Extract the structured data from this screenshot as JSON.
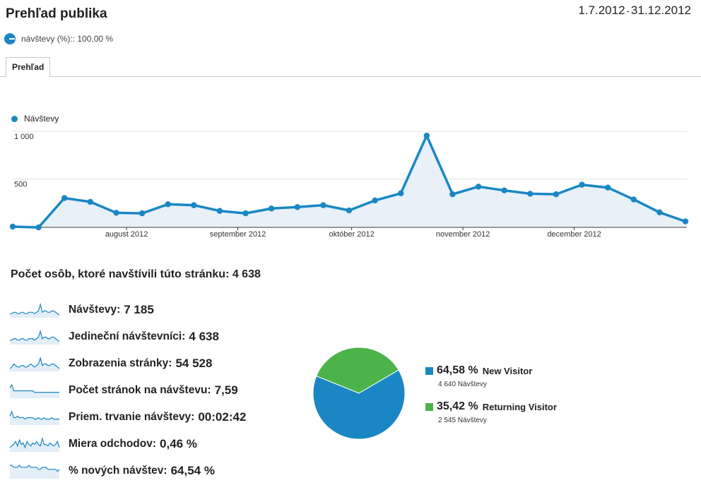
{
  "header": {
    "title": "Prehľad publika",
    "date_start": "1.7.2012",
    "date_sep": "-",
    "date_end": "31.12.2012"
  },
  "segment": {
    "label": "návštevy (%):: 100,00 %"
  },
  "tabs": [
    {
      "label": "Prehľad"
    }
  ],
  "chart_data": [
    {
      "type": "line",
      "series": [
        {
          "name": "Návštevy",
          "values": [
            0,
            -8,
            300,
            260,
            145,
            140,
            235,
            225,
            165,
            140,
            190,
            205,
            225,
            170,
            275,
            350,
            955,
            340,
            420,
            380,
            345,
            340,
            440,
            410,
            285,
            150,
            55
          ]
        }
      ],
      "x_month_labels": [
        "august 2012",
        "september 2012",
        "október 2012",
        "november 2012",
        "december 2012"
      ],
      "x_month_positions": [
        4.4,
        8.7,
        13.1,
        17.4,
        21.7
      ],
      "y_ticks": [
        {
          "value": 1000,
          "label": "1 000"
        },
        {
          "value": 500,
          "label": "500"
        }
      ],
      "ylim": [
        0,
        1000
      ],
      "grid": true,
      "fill": true,
      "color": "#1a87c4"
    },
    {
      "type": "pie",
      "slices": [
        {
          "name": "New Visitor",
          "value": 64.58,
          "pct_label": "64,58 %",
          "sub": "4 640 Návštevy",
          "color": "#1a87c4"
        },
        {
          "name": "Returning Visitor",
          "value": 35.42,
          "pct_label": "35,42 %",
          "sub": "2 545 Návštevy",
          "color": "#4cb34a"
        }
      ]
    }
  ],
  "summary": {
    "title": "Počet osôb, ktoré navštívili túto stránku: 4 638",
    "metrics": [
      {
        "label": "Návštevy:",
        "value": "7 185",
        "spark": [
          2,
          2,
          3,
          3,
          2,
          2,
          3,
          3,
          2,
          2,
          3,
          3,
          3,
          2,
          3,
          4,
          9,
          3,
          4,
          4,
          3,
          3,
          4,
          4,
          3,
          2,
          1
        ]
      },
      {
        "label": "Jedineční návštevníci:",
        "value": "4 638",
        "spark": [
          2,
          2,
          3,
          3,
          2,
          2,
          3,
          3,
          2,
          2,
          3,
          3,
          3,
          2,
          3,
          4,
          8,
          3,
          4,
          4,
          3,
          3,
          4,
          4,
          3,
          2,
          1
        ]
      },
      {
        "label": "Zobrazenia stránky:",
        "value": "54 528",
        "spark": [
          1,
          2,
          4,
          3,
          2,
          2,
          3,
          3,
          2,
          2,
          3,
          4,
          3,
          2,
          3,
          4,
          8,
          3,
          4,
          4,
          3,
          3,
          4,
          4,
          3,
          2,
          1
        ]
      },
      {
        "label": "Počet stránok na návštevu:",
        "value": "7,59",
        "spark": [
          6,
          8,
          4,
          4,
          4,
          4,
          4,
          4,
          4,
          4,
          4,
          4,
          4,
          3,
          3,
          3,
          3,
          3,
          3,
          3,
          3,
          3,
          3,
          3,
          3,
          3,
          3
        ]
      },
      {
        "label": "Priem. trvanie návštevy:",
        "value": "00:02:42",
        "spark": [
          5,
          8,
          4,
          4,
          5,
          4,
          4,
          4,
          3,
          4,
          4,
          4,
          4,
          3,
          3,
          4,
          3,
          3,
          4,
          3,
          3,
          3,
          4,
          3,
          3,
          3,
          3
        ]
      },
      {
        "label": "Miera odchodov:",
        "value": "0,46 %",
        "spark": [
          2,
          3,
          4,
          6,
          3,
          7,
          4,
          5,
          2,
          6,
          4,
          3,
          5,
          4,
          6,
          4,
          3,
          8,
          4,
          4,
          3,
          5,
          4,
          3,
          4,
          6,
          2
        ]
      },
      {
        "label": "% nových návštev:",
        "value": "64,54 %",
        "spark": [
          6,
          6,
          5,
          5,
          5,
          6,
          5,
          5,
          5,
          5,
          6,
          5,
          5,
          5,
          5,
          4,
          4,
          5,
          5,
          5,
          4,
          4,
          4,
          4,
          4,
          3,
          4
        ]
      }
    ]
  }
}
